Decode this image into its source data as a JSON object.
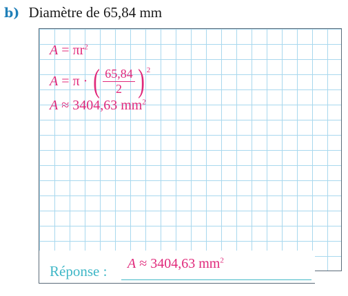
{
  "header": {
    "letter": "b)",
    "text": "Diamètre de 65,84 mm"
  },
  "work": {
    "line1": {
      "var": "A",
      "rest": " = πr",
      "exp": "2"
    },
    "line2": {
      "var": "A",
      "rest": " = π · ",
      "num": "65,84",
      "den": "2",
      "exp": "2"
    },
    "line3": {
      "var": "A",
      "rest": " ≈ 3404,63 mm",
      "exp": "2"
    }
  },
  "answer": {
    "label": "Réponse :",
    "var": "A",
    "rest": " ≈ 3404,63 mm",
    "exp": "2"
  },
  "colors": {
    "accent": "#e0287a",
    "label": "#3fb7c7",
    "grid": "#a8d8ee",
    "letter": "#1f7fb8"
  }
}
